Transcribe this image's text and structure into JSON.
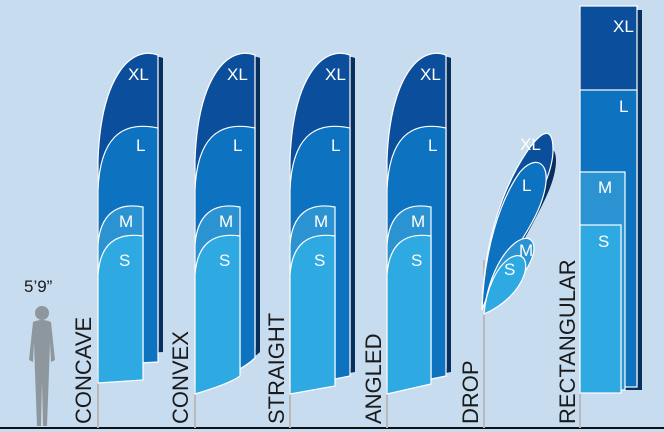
{
  "reference_height": "5’9”",
  "size_labels": {
    "xl": "XL",
    "l": "L",
    "m": "M",
    "s": "S"
  },
  "flag_types": [
    "CONCAVE",
    "CONVEX",
    "STRAIGHT",
    "ANGLED",
    "DROP",
    "RECTANGULAR"
  ],
  "colors": {
    "background": "#c8dcef",
    "xl": "#0b4f9c",
    "l": "#0d72bf",
    "m": "#2b93d1",
    "s": "#2ea9e2",
    "pole": "#b9b9b9",
    "figure": "#8e969e",
    "ground": "#111111"
  },
  "icons": {
    "figure": "person-silhouette-icon"
  }
}
